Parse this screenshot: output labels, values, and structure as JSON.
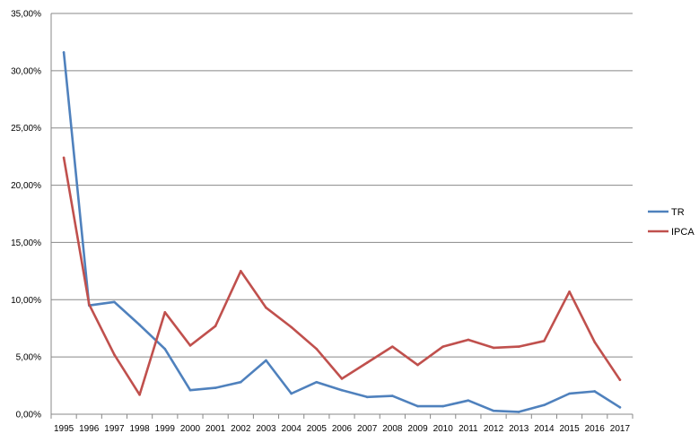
{
  "chart_data": {
    "type": "line",
    "title": "",
    "xlabel": "",
    "ylabel": "",
    "grid": true,
    "legend_position": "right",
    "ylim": [
      0,
      0.35
    ],
    "y_ticks": [
      {
        "value": 0,
        "label": "0,00%"
      },
      {
        "value": 0.05,
        "label": "5,00%"
      },
      {
        "value": 0.1,
        "label": "10,00%"
      },
      {
        "value": 0.15,
        "label": "15,00%"
      },
      {
        "value": 0.2,
        "label": "20,00%"
      },
      {
        "value": 0.25,
        "label": "25,00%"
      },
      {
        "value": 0.3,
        "label": "30,00%"
      },
      {
        "value": 0.35,
        "label": "35,00%"
      }
    ],
    "categories": [
      "1995",
      "1996",
      "1997",
      "1998",
      "1999",
      "2000",
      "2001",
      "2002",
      "2003",
      "2004",
      "2005",
      "2006",
      "2007",
      "2008",
      "2009",
      "2010",
      "2011",
      "2012",
      "2013",
      "2014",
      "2015",
      "2016",
      "2017"
    ],
    "series": [
      {
        "name": "TR",
        "color": "#4f81bd",
        "values": [
          0.316,
          0.095,
          0.098,
          0.078,
          0.057,
          0.021,
          0.023,
          0.028,
          0.047,
          0.018,
          0.028,
          0.021,
          0.015,
          0.016,
          0.007,
          0.007,
          0.012,
          0.003,
          0.002,
          0.008,
          0.018,
          0.02,
          0.006
        ]
      },
      {
        "name": "IPCA",
        "color": "#c0504d",
        "values": [
          0.224,
          0.096,
          0.052,
          0.017,
          0.089,
          0.06,
          0.077,
          0.125,
          0.093,
          0.076,
          0.057,
          0.031,
          0.045,
          0.059,
          0.043,
          0.059,
          0.065,
          0.058,
          0.059,
          0.064,
          0.107,
          0.063,
          0.03
        ]
      }
    ]
  }
}
